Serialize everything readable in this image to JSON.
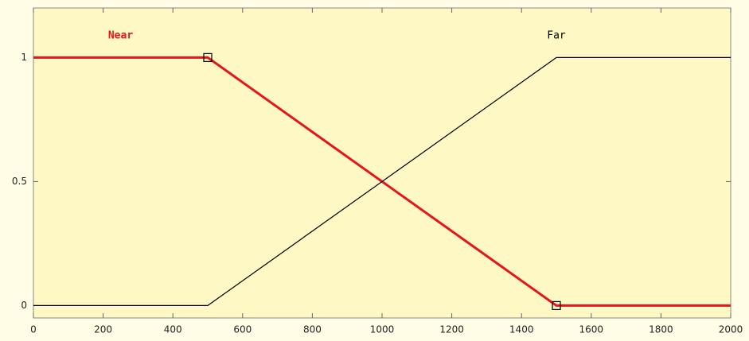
{
  "chart_data": {
    "type": "line",
    "x": [
      0,
      500,
      1500,
      2000
    ],
    "series": [
      {
        "name": "Near",
        "color": "#e8141c",
        "values": [
          1,
          1,
          0,
          0
        ]
      },
      {
        "name": "Far",
        "color": "#000000",
        "values": [
          0,
          0,
          1,
          1
        ]
      }
    ],
    "xlim": [
      0,
      2000
    ],
    "xticks": [
      0,
      200,
      400,
      600,
      800,
      1000,
      1200,
      1400,
      1600,
      1800,
      2000
    ],
    "ylim": [
      -0.05,
      1.2
    ],
    "yticks": [
      0,
      0.5,
      1
    ],
    "grid": false
  }
}
